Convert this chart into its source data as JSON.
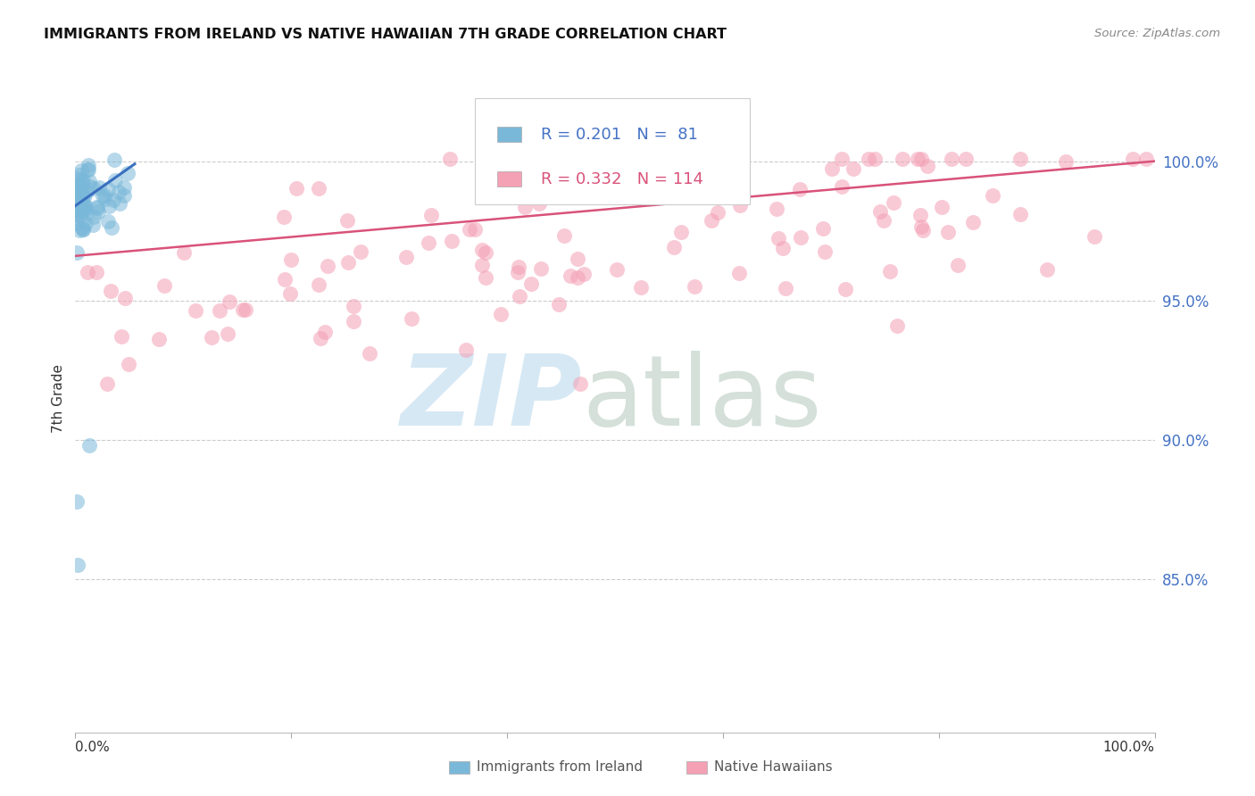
{
  "title": "IMMIGRANTS FROM IRELAND VS NATIVE HAWAIIAN 7TH GRADE CORRELATION CHART",
  "source": "Source: ZipAtlas.com",
  "ylabel": "7th Grade",
  "right_ytick_vals": [
    1.0,
    0.95,
    0.9,
    0.85
  ],
  "right_ytick_labels": [
    "100.0%",
    "95.0%",
    "90.0%",
    "85.0%"
  ],
  "xlim": [
    0.0,
    1.0
  ],
  "ylim": [
    0.795,
    1.035
  ],
  "legend_R1": "0.201",
  "legend_N1": " 81",
  "legend_R2": "0.332",
  "legend_N2": "114",
  "blue_color": "#7ab8d9",
  "pink_color": "#f4a0b5",
  "blue_line_color": "#3a6fbf",
  "pink_line_color": "#d9527a",
  "legend_text_color": "#4472c4",
  "right_axis_color": "#4472c4",
  "watermark_zip_color": "#c5dff0",
  "watermark_atlas_color": "#b8ccc0"
}
